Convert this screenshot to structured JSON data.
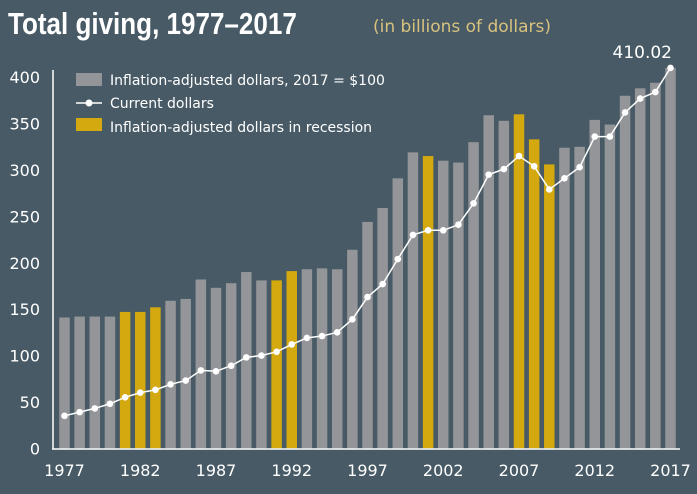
{
  "chart_data": {
    "type": "bar",
    "title": "Total giving, 1977–2017",
    "subtitle": "(in billions of dollars)",
    "xlabel": "",
    "ylabel": "",
    "ylim": [
      0,
      400
    ],
    "yticks": [
      "0",
      "50",
      "100",
      "150",
      "200",
      "250",
      "300",
      "350",
      "400"
    ],
    "xticks": [
      "1977",
      "1982",
      "1987",
      "1992",
      "1997",
      "2002",
      "2007",
      "2012",
      "2017"
    ],
    "grid": false,
    "legend_position": "top-left",
    "legend": [
      "Inflation-adjusted dollars, 2017 = $100",
      "Current dollars",
      "Inflation-adjusted dollars in recession"
    ],
    "colors": {
      "bar": "#939598",
      "recession": "#d4a90f",
      "line": "#ffffff",
      "background": "#475a65"
    },
    "years": [
      1977,
      1978,
      1979,
      1980,
      1981,
      1982,
      1983,
      1984,
      1985,
      1986,
      1987,
      1988,
      1989,
      1990,
      1991,
      1992,
      1993,
      1994,
      1995,
      1996,
      1997,
      1998,
      1999,
      2000,
      2001,
      2002,
      2003,
      2004,
      2005,
      2006,
      2007,
      2008,
      2009,
      2010,
      2011,
      2012,
      2013,
      2014,
      2015,
      2016,
      2017
    ],
    "recession_years": [
      1981,
      1982,
      1983,
      1991,
      1992,
      2001,
      2007,
      2008,
      2009
    ],
    "series": [
      {
        "name": "Inflation-adjusted dollars, 2017 = $100",
        "type": "bar",
        "values": [
          141,
          142,
          142,
          142,
          147,
          147,
          152,
          159,
          161,
          182,
          173,
          178,
          190,
          181,
          181,
          191,
          193,
          194,
          193,
          214,
          244,
          259,
          291,
          319,
          315,
          310,
          308,
          330,
          359,
          353,
          360,
          333,
          306,
          324,
          325,
          354,
          349,
          380,
          388,
          394,
          410.02
        ]
      },
      {
        "name": "Current dollars",
        "type": "line",
        "values": [
          35,
          39,
          43,
          48,
          55,
          60,
          63,
          69,
          73,
          84,
          83,
          89,
          98,
          100,
          104,
          112,
          119,
          121,
          125,
          139,
          163,
          177,
          204,
          230,
          235,
          235,
          241,
          264,
          295,
          301,
          315,
          304,
          279,
          291,
          303,
          336,
          336,
          362,
          377,
          384,
          410.02
        ]
      }
    ],
    "annotations": [
      "410.02"
    ]
  }
}
